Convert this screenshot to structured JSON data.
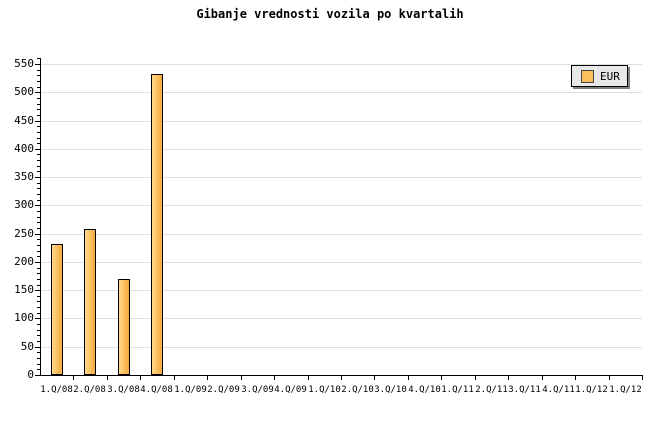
{
  "title": "Gibanje vrednosti vozila po kvartalih",
  "legend": {
    "label": "EUR"
  },
  "colors": {
    "background": "#FFFFFF",
    "bar_fill_light": "#FFD98C",
    "bar_fill_dark": "#F6A93C",
    "bar_border": "#000000",
    "gridline": "#E0E0E0",
    "axis": "#000000",
    "text": "#000000",
    "legend_bg": "#E8E8E8",
    "legend_border": "#000000",
    "legend_shadow": "#808080",
    "legend_swatch": "#FAC05A",
    "legend_swatch_border": "#444444"
  },
  "chart_data": {
    "type": "bar",
    "title": "Gibanje vrednosti vozila po kvartalih",
    "series_name": "EUR",
    "categories": [
      "1.Q/08",
      "2.Q/08",
      "3.Q/08",
      "4.Q/08",
      "1.Q/09",
      "2.Q/09",
      "3.Q/09",
      "4.Q/09",
      "1.Q/10",
      "2.Q/10",
      "3.Q/10",
      "4.Q/10",
      "1.Q/11",
      "2.Q/11",
      "3.Q/11",
      "4.Q/11",
      "1.Q/12",
      "1.Q/12"
    ],
    "values": [
      232,
      258,
      170,
      532,
      null,
      null,
      null,
      null,
      null,
      null,
      null,
      null,
      null,
      null,
      null,
      null,
      null,
      null
    ],
    "xlabel": "",
    "ylabel": "",
    "ylim": [
      0,
      550
    ],
    "y_tick_labels": [
      "0",
      "50",
      "100",
      "150",
      "200",
      "250",
      "300",
      "350",
      "400",
      "450",
      "500",
      "550"
    ],
    "y_major_step": 50,
    "y_minor_step": 10,
    "grid": "horizontal-major",
    "legend_position": "top-right"
  }
}
